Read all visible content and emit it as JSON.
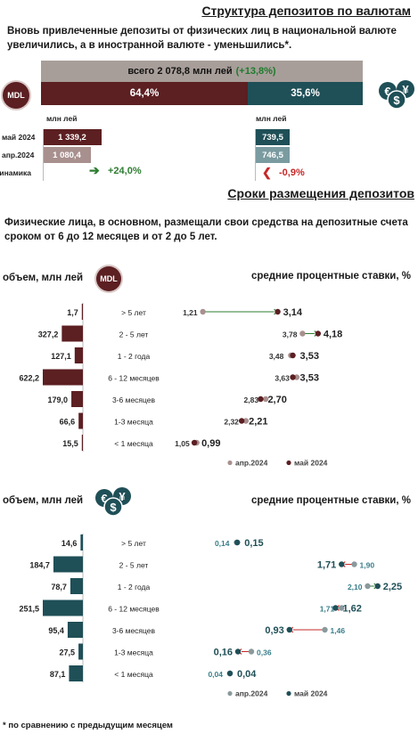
{
  "structure": {
    "title": "Структура депозитов по валютам",
    "subtitle_line1": "Вновь привлеченные депозиты от физических лиц в национальной валюте",
    "subtitle_line2": "увеличились, а в иностранной валюте - уменьшились*.",
    "total_label": "всего 2 078,8 млн лей",
    "total_change": "(+13,8%)",
    "mdl_share": "64,4%",
    "fx_share": "35,6%",
    "mdl_badge": "MDL",
    "unit_mdl": "млн лей",
    "unit_fx": "млн лей",
    "row_labels": [
      "май 2024",
      "апр.2024",
      "динамика"
    ],
    "mdl_may": "1 339,2",
    "mdl_apr": "1 080,4",
    "mdl_change": "+24,0%",
    "fx_may": "739,5",
    "fx_apr": "746,5",
    "fx_change": "-0,9%",
    "colors": {
      "mdl": "#5c1f22",
      "mdl_light": "#a8908e",
      "fx": "#1f4f57",
      "fx_light": "#7a9ba0",
      "total": "#a89e99",
      "up": "#2e7d32",
      "down": "#c62828"
    }
  },
  "terms": {
    "title": "Сроки размещения депозитов",
    "text_line1": "Физические лица, в основном, размещали свои средства на депозитные счета",
    "text_line2": "сроком от 6 до 12 месяцев и от 2 до 5 лет."
  },
  "mdl_panel": {
    "volume_title": "объем, млн лей",
    "badge": "MDL",
    "rates_title": "средние процентные ставки, %",
    "legend_apr": "апр.2024",
    "legend_may": "май 2024"
  },
  "fx_panel": {
    "volume_title": "объем, млн лей",
    "rates_title": "средние процентные ставки, %",
    "legend_apr": "апр.2024",
    "legend_may": "май 2024"
  },
  "footnote": "* по сравнению с предыдущим месяцем",
  "chart_data": [
    {
      "type": "bar",
      "title": "объем, млн лей",
      "currency": "MDL",
      "categories": [
        "> 5 лет",
        "2 - 5 лет",
        "1 - 2 года",
        "6 - 12 месяцев",
        "3-6 месяцев",
        "1-3 месяца",
        "< 1 месяца"
      ],
      "values": [
        1.7,
        327.2,
        127.1,
        622.2,
        179.0,
        66.6,
        15.5
      ],
      "value_labels": [
        "1,7",
        "327,2",
        "127,1",
        "622,2",
        "179,0",
        "66,6",
        "15,5"
      ],
      "color": "#5c1f22"
    },
    {
      "type": "scatter",
      "title": "средние процентные ставки, %",
      "currency": "MDL",
      "categories": [
        "> 5 лет",
        "2 - 5 лет",
        "1 - 2 года",
        "6 - 12 месяцев",
        "3-6 месяцев",
        "1-3 месяца",
        "< 1 месяца"
      ],
      "series": [
        {
          "name": "апр.2024",
          "values": [
            1.21,
            3.78,
            3.48,
            3.63,
            2.83,
            2.32,
            1.05
          ],
          "labels": [
            "1,21",
            "3,78",
            "3,48",
            "3,63",
            "2,83",
            "2,32",
            "1,05"
          ],
          "color": "#a8908e"
        },
        {
          "name": "май 2024",
          "values": [
            3.14,
            4.18,
            3.53,
            3.53,
            2.7,
            2.21,
            0.99
          ],
          "labels": [
            "3,14",
            "4,18",
            "3,53",
            "3,53",
            "2,70",
            "2,21",
            "0,99"
          ],
          "color": "#5c1f22"
        }
      ],
      "legend": "bottom"
    },
    {
      "type": "bar",
      "title": "объем, млн лей",
      "currency": "FX",
      "categories": [
        "> 5 лет",
        "2 - 5 лет",
        "1 - 2 года",
        "6 - 12 месяцев",
        "3-6 месяцев",
        "1-3 месяца",
        "< 1 месяца"
      ],
      "values": [
        14.6,
        184.7,
        78.7,
        251.5,
        95.4,
        27.5,
        87.1
      ],
      "value_labels": [
        "14,6",
        "184,7",
        "78,7",
        "251,5",
        "95,4",
        "27,5",
        "87,1"
      ],
      "color": "#1f4f57"
    },
    {
      "type": "scatter",
      "title": "средние процентные ставки, %",
      "currency": "FX",
      "categories": [
        "> 5 лет",
        "2 - 5 лет",
        "1 - 2 года",
        "6 - 12 месяцев",
        "3-6 месяцев",
        "1-3 месяца",
        "< 1 месяца"
      ],
      "series": [
        {
          "name": "апр.2024",
          "values": [
            0.14,
            1.9,
            2.1,
            1.71,
            1.46,
            0.36,
            0.04
          ],
          "labels": [
            "0,14",
            "1,90",
            "2,10",
            "1,71",
            "1,46",
            "0,36",
            "0,04"
          ],
          "color": "#8a9a9c"
        },
        {
          "name": "май 2024",
          "values": [
            0.15,
            1.71,
            2.25,
            1.62,
            0.93,
            0.16,
            0.04
          ],
          "labels": [
            "0,15",
            "1,71",
            "2,25",
            "1,62",
            "0,93",
            "0,16",
            "0,04"
          ],
          "color": "#1f4f57"
        }
      ],
      "legend": "bottom"
    }
  ]
}
